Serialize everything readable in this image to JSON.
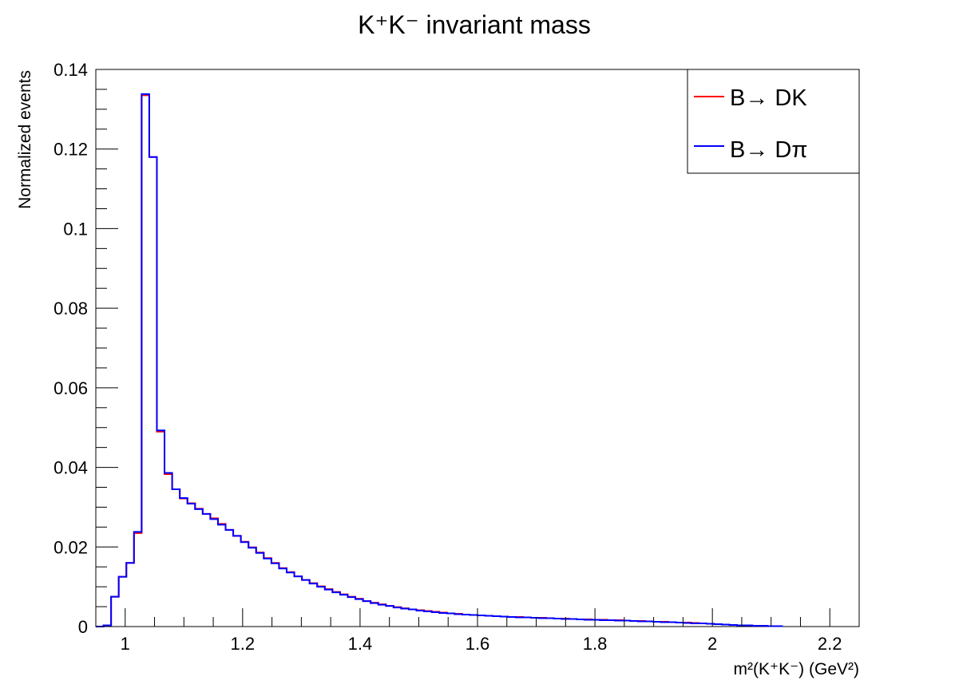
{
  "chart_data": {
    "type": "histogram",
    "title": "K⁺K⁻ invariant mass",
    "xlabel": "m²(K⁺K⁻) (GeV²)",
    "ylabel": "Normalized events",
    "xlim": [
      0.95,
      2.25
    ],
    "ylim": [
      0,
      0.14
    ],
    "x_ticks": [
      "1",
      "1.2",
      "1.4",
      "1.6",
      "1.8",
      "2",
      "2.2"
    ],
    "y_ticks": [
      "0",
      "0.02",
      "0.04",
      "0.06",
      "0.08",
      "0.1",
      "0.12",
      "0.14"
    ],
    "grid": false,
    "legend_position": "top-right",
    "bin_edges_start": 0.95,
    "bin_width": 0.013,
    "series": [
      {
        "name": "B→ DK",
        "color": "#ff0000",
        "values": [
          0.0,
          0.0003,
          0.0075,
          0.0125,
          0.016,
          0.0235,
          0.1335,
          0.118,
          0.049,
          0.0383,
          0.0345,
          0.0322,
          0.031,
          0.0296,
          0.0283,
          0.0272,
          0.0258,
          0.0243,
          0.0228,
          0.0213,
          0.0199,
          0.0186,
          0.0172,
          0.016,
          0.0147,
          0.0137,
          0.0126,
          0.0117,
          0.0109,
          0.0101,
          0.0094,
          0.0087,
          0.0081,
          0.0075,
          0.007,
          0.0064,
          0.006,
          0.0056,
          0.0052,
          0.0049,
          0.0046,
          0.0043,
          0.0041,
          0.0039,
          0.0037,
          0.0035,
          0.0033,
          0.0032,
          0.003,
          0.0029,
          0.0028,
          0.0027,
          0.0026,
          0.0025,
          0.0024,
          0.0024,
          0.0023,
          0.0022,
          0.0022,
          0.0021,
          0.002,
          0.002,
          0.0019,
          0.0018,
          0.0018,
          0.0017,
          0.0017,
          0.0016,
          0.0016,
          0.0015,
          0.0014,
          0.0014,
          0.0013,
          0.0012,
          0.0012,
          0.0011,
          0.001,
          0.001,
          0.0009,
          0.0008,
          0.0007,
          0.0006,
          0.0005,
          0.0004,
          0.0003,
          0.0003,
          0.0002,
          0.0002,
          0.0001,
          0.0001
        ]
      },
      {
        "name": "B→ Dπ",
        "color": "#0000ff",
        "values": [
          0.0,
          0.0003,
          0.0075,
          0.0125,
          0.016,
          0.0238,
          0.1338,
          0.118,
          0.0493,
          0.0386,
          0.0345,
          0.0323,
          0.0309,
          0.0295,
          0.0283,
          0.027,
          0.0256,
          0.0243,
          0.0228,
          0.0212,
          0.0198,
          0.0185,
          0.0171,
          0.0159,
          0.0146,
          0.0136,
          0.0126,
          0.0117,
          0.0108,
          0.01,
          0.0093,
          0.0086,
          0.008,
          0.0074,
          0.0069,
          0.0064,
          0.0059,
          0.0055,
          0.0052,
          0.0048,
          0.0045,
          0.0043,
          0.004,
          0.0038,
          0.0036,
          0.0034,
          0.0033,
          0.0031,
          0.003,
          0.0029,
          0.0028,
          0.0027,
          0.0026,
          0.0025,
          0.0024,
          0.0023,
          0.0023,
          0.0022,
          0.0021,
          0.0021,
          0.002,
          0.0019,
          0.0019,
          0.0018,
          0.0017,
          0.0017,
          0.0016,
          0.0016,
          0.0015,
          0.0015,
          0.0014,
          0.0013,
          0.0013,
          0.0012,
          0.0011,
          0.0011,
          0.001,
          0.0009,
          0.0008,
          0.0008,
          0.0007,
          0.0006,
          0.0005,
          0.0004,
          0.0003,
          0.0003,
          0.0002,
          0.0002,
          0.0001,
          0.0001
        ]
      }
    ]
  }
}
